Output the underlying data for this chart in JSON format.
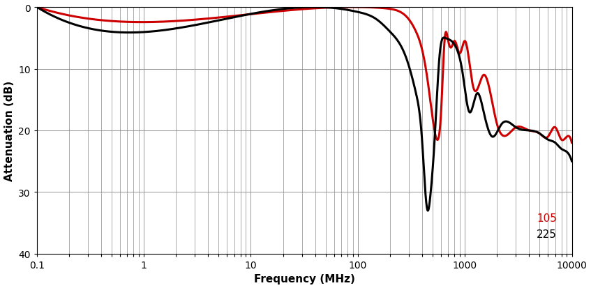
{
  "xlabel": "Frequency (MHz)",
  "ylabel": "Attenuation (dB)",
  "xlim": [
    0.1,
    10000
  ],
  "ylim": [
    40,
    0
  ],
  "yticks": [
    0,
    10,
    20,
    30,
    40
  ],
  "background_color": "#ffffff",
  "grid_color": "#888888",
  "legend_labels": [
    "105",
    "225"
  ],
  "legend_colors": [
    "#cc0000",
    "#000000"
  ],
  "line_width": 2.2,
  "curve_225_freq": [
    0.1,
    40,
    55,
    70,
    100,
    150,
    200,
    280,
    350,
    400,
    420,
    450,
    480,
    520,
    580,
    650,
    750,
    850,
    950,
    1100,
    1300,
    1500,
    1800,
    2200,
    3000,
    4000,
    5000,
    6000,
    7000,
    8000,
    9000,
    10000
  ],
  "curve_225_attn": [
    0.0,
    0.0,
    0.1,
    0.3,
    0.8,
    2.0,
    4.0,
    8.0,
    14.0,
    22.0,
    28.0,
    33.0,
    30.0,
    22.0,
    8.0,
    5.0,
    5.5,
    7.0,
    10.5,
    17.0,
    14.0,
    17.0,
    21.0,
    19.0,
    19.5,
    20.0,
    20.5,
    21.5,
    22.0,
    23.0,
    23.5,
    25.0
  ],
  "curve_105_freq": [
    0.1,
    100,
    150,
    200,
    250,
    300,
    350,
    400,
    450,
    500,
    550,
    600,
    650,
    700,
    750,
    800,
    900,
    1000,
    1200,
    1500,
    2000,
    3000,
    4000,
    5000,
    6000,
    7000,
    8000,
    9000,
    10000
  ],
  "curve_105_attn": [
    0.0,
    0.0,
    0.1,
    0.3,
    0.8,
    2.0,
    4.0,
    7.0,
    12.0,
    18.0,
    21.5,
    17.0,
    5.0,
    5.5,
    6.5,
    5.5,
    7.5,
    5.5,
    13.0,
    11.0,
    19.0,
    19.5,
    20.0,
    20.5,
    21.0,
    19.5,
    21.5,
    21.0,
    22.0
  ]
}
